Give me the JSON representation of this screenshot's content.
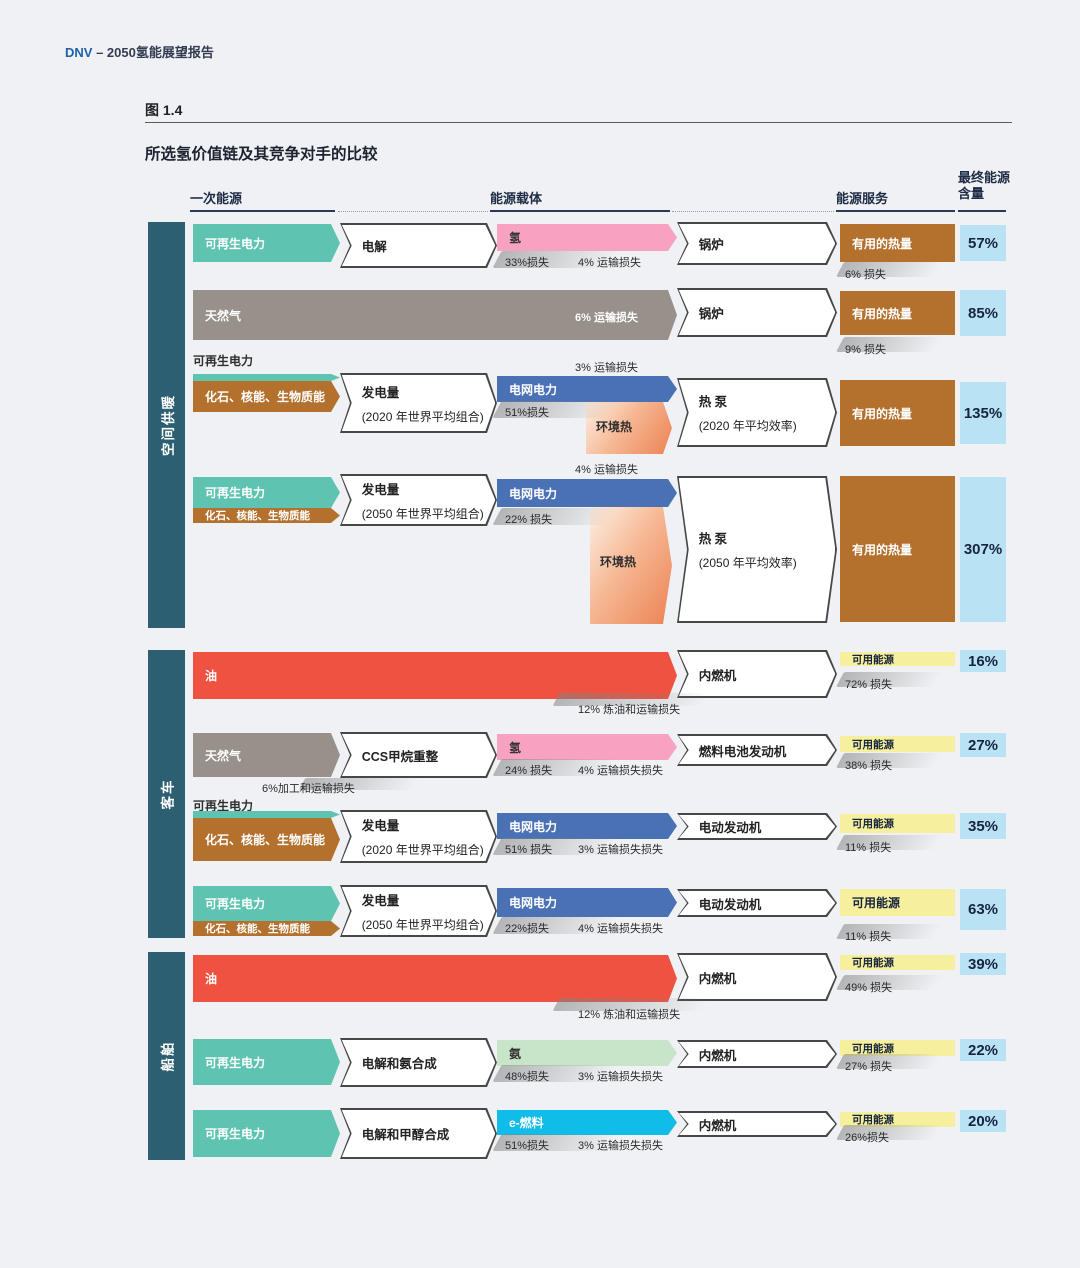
{
  "page": {
    "brand": "DNV",
    "header_suffix": " – 2050氢能展望报告",
    "figure_label": "图 1.4",
    "title": "所选氢价值链及其竞争对手的比较"
  },
  "columns": [
    {
      "label": "一次能源"
    },
    {
      "label": "能源载体"
    },
    {
      "label": "能源服务"
    },
    {
      "label": "最终能源含量"
    }
  ],
  "colors": {
    "dark_teal": "#2b5f71",
    "teal": "#5ec4b1",
    "brown": "#b4712e",
    "gray": "#97908b",
    "pink": "#f6a2c0",
    "blue": "#4a71b4",
    "red": "#ef5240",
    "green": "#c9e5c9",
    "cyan": "#10bce8",
    "yellow": "#f6f09e",
    "light_blue": "#b9e3f4",
    "text_dark": "#2b2b2b"
  },
  "sections": [
    {
      "label": "空间供暖",
      "rows": [
        {
          "primary": [
            {
              "label": "可再生电力",
              "color": "teal"
            }
          ],
          "process": {
            "title": "电解"
          },
          "carrier": {
            "label": "氢",
            "color": "pink",
            "losses": [
              "33%损失",
              "4% 运输损失"
            ]
          },
          "service": {
            "title": "锅炉"
          },
          "output": {
            "label": "有用的热量",
            "color": "brown",
            "loss": "6% 损失"
          },
          "result": "57%"
        },
        {
          "primary_wide": {
            "label": "天然气",
            "color": "gray",
            "note": "6% 运输损失"
          },
          "service": {
            "title": "锅炉"
          },
          "output": {
            "label": "有用的热量",
            "color": "brown",
            "loss": "9% 损失"
          },
          "result": "85%"
        },
        {
          "primary_note": "可再生电力",
          "primary": [
            {
              "label": "",
              "color": "teal"
            },
            {
              "label": "化石、核能、生物质能",
              "color": "brown"
            }
          ],
          "process": {
            "title": "发电量",
            "subtitle": "(2020 年世界平均组合)"
          },
          "carrier": {
            "label": "电网电力",
            "color": "blue",
            "losses": [
              "51%损失"
            ],
            "transport_above": "3% 运输损失"
          },
          "ambient": "环境热",
          "service": {
            "title": "热 泵",
            "subtitle": "(2020 年平均效率)"
          },
          "output": {
            "label": "有用的热量",
            "color": "brown"
          },
          "result": "135%"
        },
        {
          "primary": [
            {
              "label": "可再生电力",
              "color": "teal"
            },
            {
              "label": "化石、核能、生物质能",
              "color": "brown"
            }
          ],
          "process": {
            "title": "发电量",
            "subtitle": "(2050 年世界平均组合)"
          },
          "carrier": {
            "label": "电网电力",
            "color": "blue",
            "losses": [
              "22% 损失"
            ],
            "transport_above": "4% 运输损失"
          },
          "ambient": "环境热",
          "service": {
            "title": "热 泵",
            "subtitle": "(2050 年平均效率)"
          },
          "output": {
            "label": "有用的热量",
            "color": "brown"
          },
          "result": "307%"
        }
      ]
    },
    {
      "label": "客车",
      "rows": [
        {
          "primary_wide": {
            "label": "油",
            "color": "red",
            "loss_below": "12% 炼油和运输损失"
          },
          "service": {
            "title": "内燃机"
          },
          "output": {
            "label": "可用能源",
            "color": "yellow",
            "loss": "72% 损失"
          },
          "result": "16%"
        },
        {
          "primary": [
            {
              "label": "天然气",
              "color": "gray"
            }
          ],
          "primary_loss_below": "6%加工和运输损失",
          "process": {
            "title": "CCS甲烷重整"
          },
          "carrier": {
            "label": "氢",
            "color": "pink",
            "losses": [
              "24% 损失",
              "4% 运输损失损失"
            ]
          },
          "service": {
            "title": "燃料电池发动机"
          },
          "output": {
            "label": "可用能源",
            "color": "yellow",
            "loss": "38% 损失"
          },
          "result": "27%"
        },
        {
          "primary_note": "可再生电力",
          "primary": [
            {
              "label": "",
              "color": "teal"
            },
            {
              "label": "化石、核能、生物质能",
              "color": "brown"
            }
          ],
          "process": {
            "title": "发电量",
            "subtitle": "(2020 年世界平均组合)"
          },
          "carrier": {
            "label": "电网电力",
            "color": "blue",
            "losses": [
              "51% 损失",
              "3% 运输损失损失"
            ]
          },
          "service": {
            "title": "电动发动机"
          },
          "output": {
            "label": "可用能源",
            "color": "yellow",
            "loss": "11% 损失"
          },
          "result": "35%"
        },
        {
          "primary": [
            {
              "label": "可再生电力",
              "color": "teal"
            },
            {
              "label": "化石、核能、生物质能",
              "color": "brown"
            }
          ],
          "process": {
            "title": "发电量",
            "subtitle": "(2050 年世界平均组合)"
          },
          "carrier": {
            "label": "电网电力",
            "color": "blue",
            "losses": [
              "22%损失",
              "4% 运输损失损失"
            ]
          },
          "service": {
            "title": "电动发动机"
          },
          "output": {
            "label": "可用能源",
            "color": "yellow",
            "loss": "11% 损失"
          },
          "result": "63%"
        }
      ]
    },
    {
      "label": "船舶",
      "rows": [
        {
          "primary_wide": {
            "label": "油",
            "color": "red",
            "loss_below": "12% 炼油和运输损失"
          },
          "service": {
            "title": "内燃机"
          },
          "output": {
            "label": "可用能源",
            "color": "yellow",
            "loss": "49% 损失"
          },
          "result": "39%"
        },
        {
          "primary": [
            {
              "label": "可再生电力",
              "color": "teal"
            }
          ],
          "process": {
            "title": "电解和氨合成"
          },
          "carrier": {
            "label": "氨",
            "color": "green",
            "losses": [
              "48%损失",
              "3% 运输损失损失"
            ]
          },
          "service": {
            "title": "内燃机"
          },
          "output": {
            "label": "可用能源",
            "color": "yellow",
            "loss": "27% 损失"
          },
          "result": "22%"
        },
        {
          "primary": [
            {
              "label": "可再生电力",
              "color": "teal"
            }
          ],
          "process": {
            "title": "电解和甲醇合成"
          },
          "carrier": {
            "label": "e-燃料",
            "color": "cyan",
            "losses": [
              "51%损失",
              "3% 运输损失损失"
            ]
          },
          "service": {
            "title": "内燃机"
          },
          "output": {
            "label": "可用能源",
            "color": "yellow",
            "loss": "26%损失"
          },
          "result": "20%"
        }
      ]
    }
  ]
}
